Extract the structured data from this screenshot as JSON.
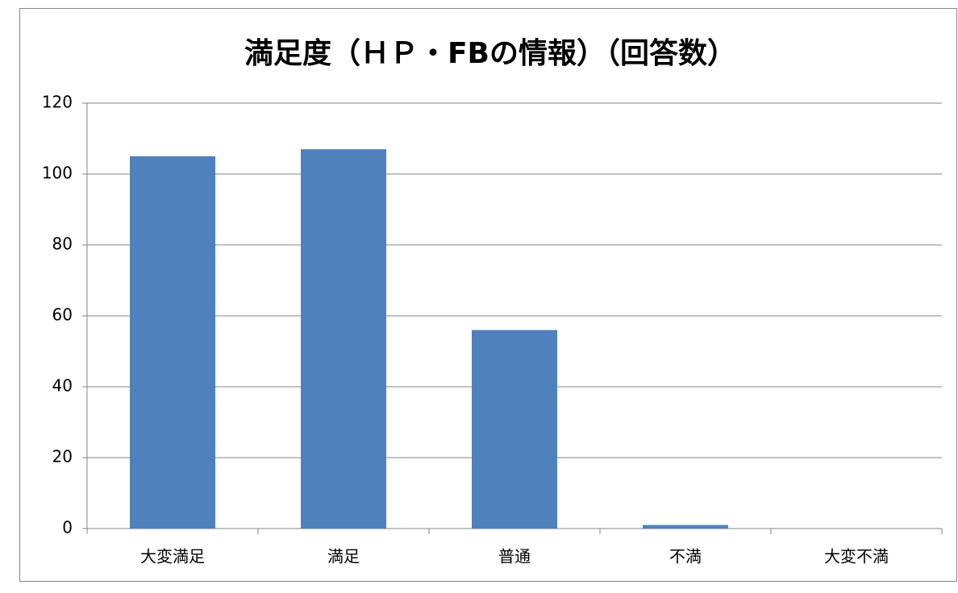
{
  "chart_data": {
    "type": "bar",
    "title": "満足度（ＨＰ・FBの情報）（回答数）",
    "categories": [
      "大変満足",
      "満足",
      "普通",
      "不満",
      "大変不満"
    ],
    "values": [
      105,
      107,
      56,
      1,
      0
    ],
    "color": "#4f81bd",
    "ylim": [
      0,
      120
    ],
    "yticks": [
      0,
      20,
      40,
      60,
      80,
      100,
      120
    ],
    "grid": true
  }
}
